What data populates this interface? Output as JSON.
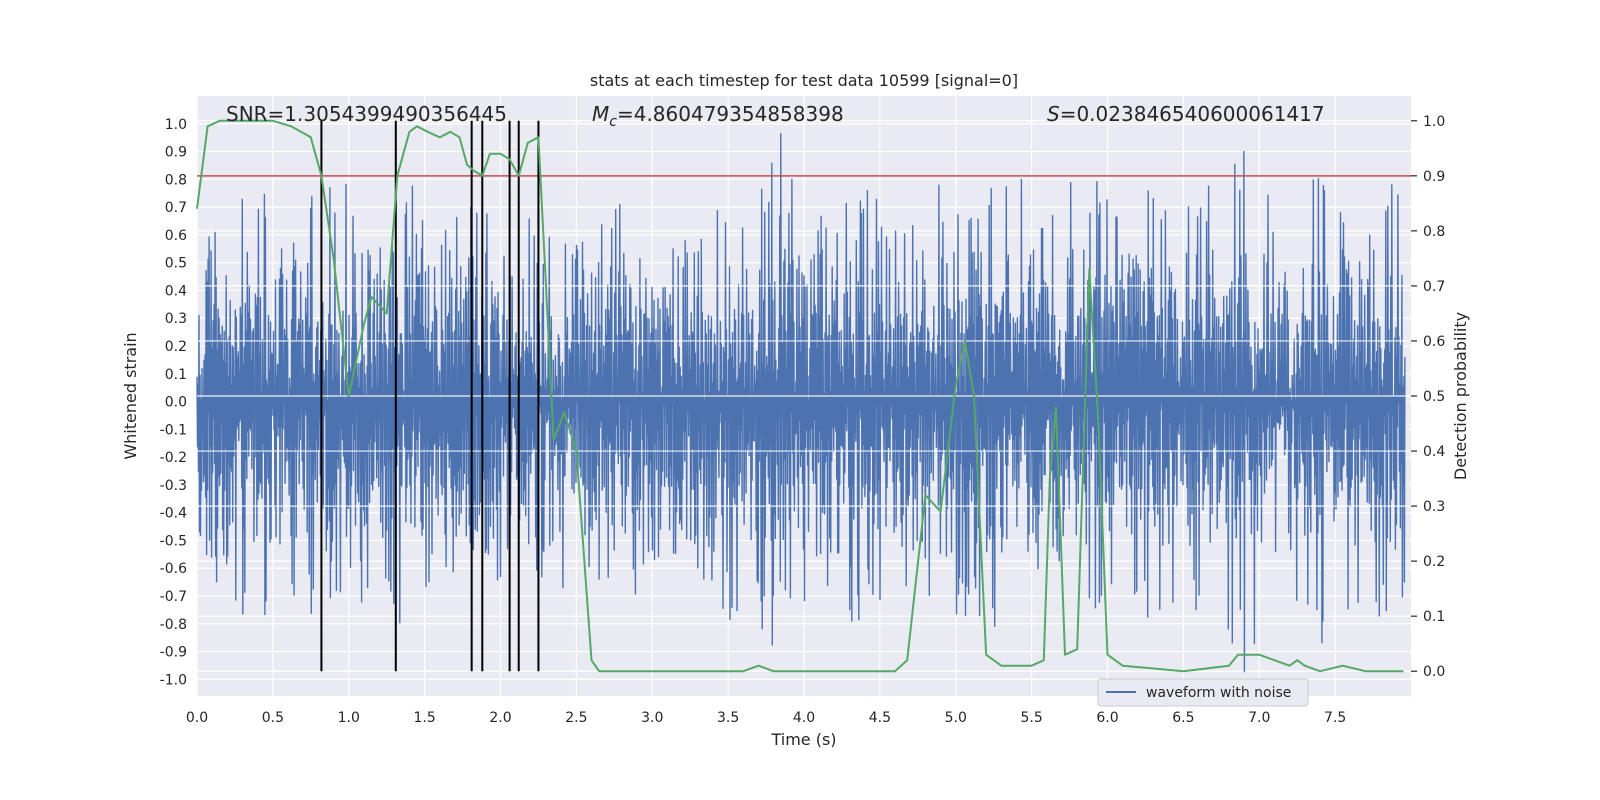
{
  "chart_data": {
    "type": "line",
    "title": "stats at each timestep for test data 10599 [signal=0]",
    "xlabel": "Time (s)",
    "ylabel": "Whitened strain",
    "y2label": "Detection probability",
    "xlim": [
      0.0,
      8.0
    ],
    "ylim": [
      -1.06,
      1.1
    ],
    "y2lim": [
      -0.045,
      1.045
    ],
    "x_ticks": [
      "0.0",
      "0.5",
      "1.0",
      "1.5",
      "2.0",
      "2.5",
      "3.0",
      "3.5",
      "4.0",
      "4.5",
      "5.0",
      "5.5",
      "6.0",
      "6.5",
      "7.0",
      "7.5"
    ],
    "y_ticks": [
      "-1.0",
      "-0.9",
      "-0.8",
      "-0.7",
      "-0.6",
      "-0.5",
      "-0.4",
      "-0.3",
      "-0.2",
      "-0.1",
      "0.0",
      "0.1",
      "0.2",
      "0.3",
      "0.4",
      "0.5",
      "0.6",
      "0.7",
      "0.8",
      "0.9",
      "1.0"
    ],
    "y2_ticks": [
      "0.0",
      "0.1",
      "0.2",
      "0.3",
      "0.4",
      "0.5",
      "0.6",
      "0.7",
      "0.8",
      "0.9",
      "1.0"
    ],
    "annotations": {
      "snr": "SNR=1.3054399490356445",
      "mc_symbol": "M",
      "mc_sub": "c",
      "mc_value": "=4.860479354858398",
      "s_symbol": "S",
      "s_value": "=0.023846540600061417"
    },
    "threshold": {
      "y2": 0.9,
      "color": "#c44e52"
    },
    "detection_lines_x": [
      0.82,
      1.31,
      1.81,
      1.88,
      2.06,
      2.12,
      2.25
    ],
    "detection_lines_y2_range": [
      0.0,
      1.0
    ],
    "waveform_envelope": {
      "step": 0.25,
      "upper": [
        0.65,
        0.78,
        0.62,
        0.8,
        0.62,
        0.8,
        0.7,
        0.7,
        0.62,
        0.7,
        0.66,
        0.72,
        0.6,
        0.68,
        0.72,
        0.78,
        0.78,
        0.7,
        0.72,
        0.82,
        0.78,
        0.82,
        0.68,
        0.86,
        0.76,
        0.78,
        0.78,
        1.0,
        0.78,
        0.9,
        0.8,
        0.82
      ],
      "lower": [
        -0.62,
        -0.78,
        -0.72,
        -0.7,
        -0.74,
        -0.72,
        -0.68,
        -0.64,
        -0.66,
        -0.7,
        -0.64,
        -0.7,
        -0.6,
        -0.76,
        -0.82,
        -0.97,
        -0.68,
        -0.8,
        -0.72,
        -0.66,
        -0.7,
        -0.85,
        -0.7,
        -0.82,
        -0.74,
        -0.78,
        -0.72,
        -0.92,
        -0.72,
        -0.8,
        -0.74,
        -0.72
      ]
    },
    "series": [
      {
        "name": "waveform with noise",
        "color": "#4c72b0"
      },
      {
        "color": "#55a868",
        "x": [
          0.0,
          0.07,
          0.15,
          0.5,
          0.62,
          0.75,
          0.82,
          0.9,
          1.0,
          1.1,
          1.15,
          1.25,
          1.32,
          1.4,
          1.45,
          1.52,
          1.6,
          1.67,
          1.73,
          1.78,
          1.82,
          1.88,
          1.93,
          2.0,
          2.06,
          2.12,
          2.18,
          2.25,
          2.3,
          2.35,
          2.42,
          2.5,
          2.6,
          2.65,
          3.0,
          3.6,
          3.7,
          3.8,
          4.3,
          4.6,
          4.68,
          4.8,
          4.9,
          5.0,
          5.06,
          5.12,
          5.2,
          5.3,
          5.5,
          5.58,
          5.62,
          5.66,
          5.72,
          5.8,
          5.88,
          5.94,
          6.0,
          6.1,
          6.5,
          6.8,
          6.86,
          6.9,
          7.0,
          7.1,
          7.2,
          7.25,
          7.3,
          7.4,
          7.55,
          7.7,
          7.95
        ],
        "values": [
          0.84,
          0.99,
          1.0,
          1.0,
          0.99,
          0.97,
          0.9,
          0.75,
          0.5,
          0.63,
          0.68,
          0.65,
          0.9,
          0.98,
          0.99,
          0.98,
          0.97,
          0.98,
          0.97,
          0.92,
          0.91,
          0.9,
          0.94,
          0.94,
          0.93,
          0.9,
          0.96,
          0.97,
          0.7,
          0.42,
          0.47,
          0.4,
          0.02,
          0.0,
          0.0,
          0.0,
          0.01,
          0.0,
          0.0,
          0.0,
          0.02,
          0.32,
          0.29,
          0.52,
          0.6,
          0.5,
          0.03,
          0.01,
          0.01,
          0.02,
          0.35,
          0.48,
          0.03,
          0.04,
          0.73,
          0.45,
          0.03,
          0.01,
          0.0,
          0.01,
          0.03,
          0.03,
          0.03,
          0.02,
          0.01,
          0.02,
          0.01,
          0.0,
          0.01,
          0.0,
          0.0
        ]
      }
    ],
    "legend": {
      "placement": "lower-right"
    },
    "grid": true,
    "colors": {
      "axes_bg": "#eaeaf2",
      "grid": "#ffffff",
      "vlines": "#000000"
    }
  }
}
